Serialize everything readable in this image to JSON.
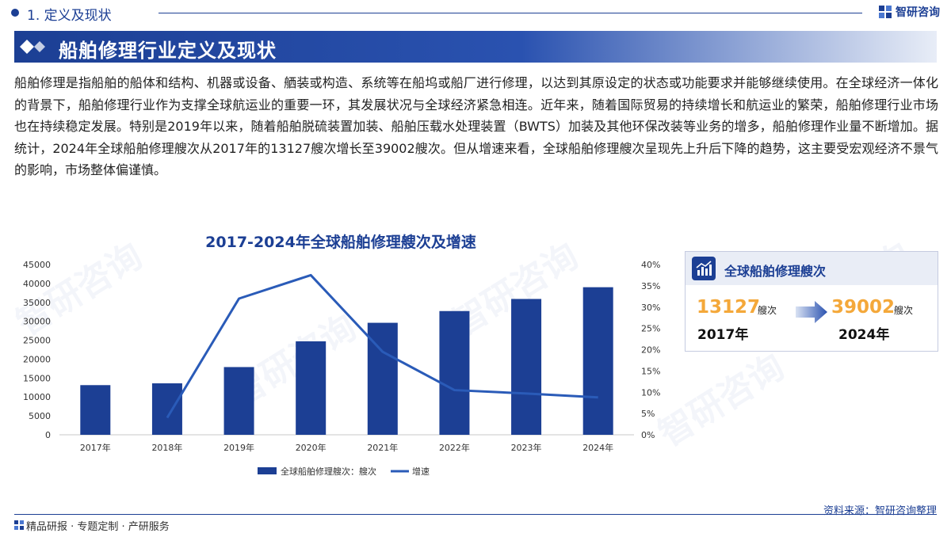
{
  "header": {
    "section": "1. 定义及现状",
    "brand": "智研咨询",
    "title": "船舶修理行业定义及现状"
  },
  "body_text": "船舶修理是指船舶的船体和结构、机器或设备、舾装或构造、系统等在船坞或船厂进行修理，以达到其原设定的状态或功能要求并能够继续使用。在全球经济一体化的背景下，船舶修理行业作为支撑全球航运业的重要一环，其发展状况与全球经济紧急相连。近年来，随着国际贸易的持续增长和航运业的繁荣，船舶修理行业市场也在持续稳定发展。特别是2019年以来，随着船舶脱硫装置加装、船舶压载水处理装置（BWTS）加装及其他环保改装等业务的增多，船舶修理作业量不断增加。据统计，2024年全球船舶修理艘次从2017年的13127艘次增长至39002艘次。但从增速来看，全球船舶修理艘次呈现先上升后下降的趋势，这主要受宏观经济不景气的影响，市场整体偏谨慎。",
  "chart_data": {
    "type": "bar",
    "title": "2017-2024年全球船舶修理艘次及增速",
    "categories": [
      "2017年",
      "2018年",
      "2019年",
      "2020年",
      "2021年",
      "2022年",
      "2023年",
      "2024年"
    ],
    "series": [
      {
        "name": "全球船舶修理艘次：艘次",
        "type": "bar",
        "axis": "left",
        "values": [
          13127,
          13600,
          17900,
          24700,
          29600,
          32700,
          35900,
          39002
        ]
      },
      {
        "name": "增速",
        "type": "line",
        "axis": "right",
        "values": [
          null,
          0.04,
          0.32,
          0.375,
          0.195,
          0.105,
          0.097,
          0.088
        ]
      }
    ],
    "y_left": {
      "min": 0,
      "max": 45000,
      "ticks": [
        "0",
        "5000",
        "10000",
        "15000",
        "20000",
        "25000",
        "30000",
        "35000",
        "40000",
        "45000"
      ]
    },
    "y_right": {
      "min": 0,
      "max": 0.4,
      "ticks": [
        "0%",
        "5%",
        "10%",
        "15%",
        "20%",
        "25%",
        "30%",
        "35%",
        "40%"
      ]
    },
    "grid": false,
    "legend": "bottom",
    "colors": {
      "bar": "#1c3f94",
      "line": "#2a5bb8"
    }
  },
  "card": {
    "title": "全球船舶修理艘次",
    "from_value": "13127",
    "from_unit": "艘次",
    "from_year": "2017年",
    "to_value": "39002",
    "to_unit": "艘次",
    "to_year": "2024年"
  },
  "footer": {
    "source": "资料来源：智研咨询整理",
    "slogan": "精品研报 · 专题定制 · 产研服务"
  },
  "watermark": "智研咨询",
  "colors": {
    "primary": "#1c3f94",
    "accent": "#f4a83a"
  }
}
